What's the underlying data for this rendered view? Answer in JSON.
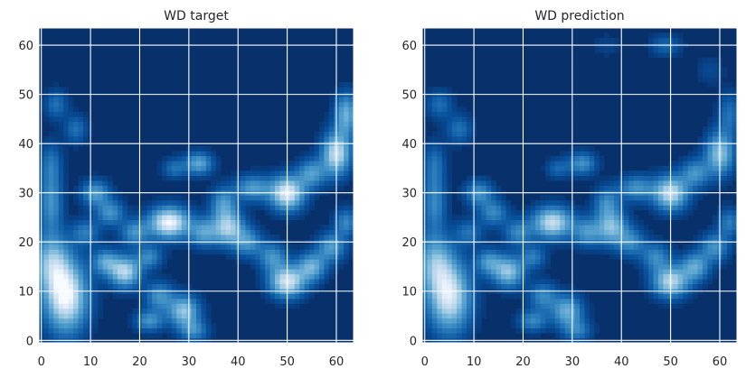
{
  "chart_data": [
    {
      "type": "heatmap",
      "title": "WD target",
      "xlabel": "",
      "ylabel": "",
      "xlim": [
        0,
        63
      ],
      "ylim": [
        0,
        63
      ],
      "x_ticks": [
        "0",
        "10",
        "20",
        "30",
        "40",
        "50",
        "60"
      ],
      "y_ticks": [
        "0",
        "10",
        "20",
        "30",
        "40",
        "50",
        "60"
      ],
      "grid": true,
      "colormap": "Blues",
      "background_color": "#08306b",
      "highlight_color": "#f7fbff",
      "blobs": [
        {
          "x": 5,
          "y": 9,
          "sx": 3.0,
          "sy": 5.0,
          "v": 1.0
        },
        {
          "x": 2,
          "y": 16,
          "sx": 2.5,
          "sy": 4.0,
          "v": 0.6
        },
        {
          "x": 2,
          "y": 28,
          "sx": 1.6,
          "sy": 4.0,
          "v": 0.45
        },
        {
          "x": 2,
          "y": 36,
          "sx": 1.5,
          "sy": 3.0,
          "v": 0.3
        },
        {
          "x": 3,
          "y": 48,
          "sx": 1.6,
          "sy": 2.0,
          "v": 0.3
        },
        {
          "x": 7,
          "y": 43,
          "sx": 1.6,
          "sy": 2.0,
          "v": 0.3
        },
        {
          "x": 11,
          "y": 30,
          "sx": 2.0,
          "sy": 1.8,
          "v": 0.5
        },
        {
          "x": 14,
          "y": 26,
          "sx": 2.0,
          "sy": 1.8,
          "v": 0.45
        },
        {
          "x": 9,
          "y": 22,
          "sx": 2.0,
          "sy": 1.8,
          "v": 0.35
        },
        {
          "x": 17,
          "y": 14,
          "sx": 2.2,
          "sy": 2.2,
          "v": 0.8
        },
        {
          "x": 13,
          "y": 16,
          "sx": 1.8,
          "sy": 1.8,
          "v": 0.5
        },
        {
          "x": 19,
          "y": 22,
          "sx": 2.0,
          "sy": 1.8,
          "v": 0.45
        },
        {
          "x": 22,
          "y": 17,
          "sx": 1.8,
          "sy": 1.6,
          "v": 0.4
        },
        {
          "x": 24,
          "y": 9,
          "sx": 2.0,
          "sy": 2.0,
          "v": 0.45
        },
        {
          "x": 29,
          "y": 6,
          "sx": 2.2,
          "sy": 2.2,
          "v": 0.7
        },
        {
          "x": 22,
          "y": 4,
          "sx": 2.0,
          "sy": 1.5,
          "v": 0.45
        },
        {
          "x": 31,
          "y": 2,
          "sx": 2.0,
          "sy": 1.5,
          "v": 0.4
        },
        {
          "x": 26,
          "y": 24,
          "sx": 2.8,
          "sy": 2.2,
          "v": 1.0
        },
        {
          "x": 33,
          "y": 22,
          "sx": 2.0,
          "sy": 2.0,
          "v": 0.5
        },
        {
          "x": 38,
          "y": 23,
          "sx": 2.2,
          "sy": 2.4,
          "v": 0.75
        },
        {
          "x": 37,
          "y": 28,
          "sx": 1.8,
          "sy": 2.2,
          "v": 0.45
        },
        {
          "x": 42,
          "y": 20,
          "sx": 2.0,
          "sy": 2.0,
          "v": 0.45
        },
        {
          "x": 47,
          "y": 17,
          "sx": 2.0,
          "sy": 2.0,
          "v": 0.45
        },
        {
          "x": 32,
          "y": 36,
          "sx": 2.0,
          "sy": 1.6,
          "v": 0.55
        },
        {
          "x": 27,
          "y": 35,
          "sx": 1.6,
          "sy": 1.4,
          "v": 0.3
        },
        {
          "x": 43,
          "y": 31,
          "sx": 2.5,
          "sy": 1.8,
          "v": 0.5
        },
        {
          "x": 50,
          "y": 30,
          "sx": 2.4,
          "sy": 2.4,
          "v": 0.95
        },
        {
          "x": 55,
          "y": 34,
          "sx": 2.0,
          "sy": 2.0,
          "v": 0.5
        },
        {
          "x": 60,
          "y": 38,
          "sx": 2.0,
          "sy": 3.0,
          "v": 0.85
        },
        {
          "x": 62,
          "y": 46,
          "sx": 1.6,
          "sy": 3.0,
          "v": 0.6
        },
        {
          "x": 50,
          "y": 12,
          "sx": 2.5,
          "sy": 2.2,
          "v": 0.9
        },
        {
          "x": 55,
          "y": 15,
          "sx": 2.0,
          "sy": 2.0,
          "v": 0.6
        },
        {
          "x": 59,
          "y": 19,
          "sx": 2.0,
          "sy": 2.0,
          "v": 0.5
        },
        {
          "x": 62,
          "y": 24,
          "sx": 1.6,
          "sy": 2.0,
          "v": 0.4
        }
      ]
    },
    {
      "type": "heatmap",
      "title": "WD prediction",
      "xlabel": "",
      "ylabel": "",
      "xlim": [
        0,
        63
      ],
      "ylim": [
        0,
        63
      ],
      "x_ticks": [
        "0",
        "10",
        "20",
        "30",
        "40",
        "50",
        "60"
      ],
      "y_ticks": [
        "0",
        "10",
        "20",
        "30",
        "40",
        "50",
        "60"
      ],
      "grid": true,
      "colormap": "Blues",
      "background_color": "#08306b",
      "highlight_color": "#f7fbff",
      "blobs": [
        {
          "x": 5,
          "y": 9,
          "sx": 3.0,
          "sy": 5.0,
          "v": 0.9
        },
        {
          "x": 2,
          "y": 16,
          "sx": 2.5,
          "sy": 4.0,
          "v": 0.55
        },
        {
          "x": 2,
          "y": 28,
          "sx": 1.6,
          "sy": 4.0,
          "v": 0.4
        },
        {
          "x": 2,
          "y": 36,
          "sx": 1.5,
          "sy": 3.0,
          "v": 0.28
        },
        {
          "x": 3,
          "y": 48,
          "sx": 1.8,
          "sy": 2.0,
          "v": 0.28
        },
        {
          "x": 7,
          "y": 43,
          "sx": 1.8,
          "sy": 2.0,
          "v": 0.3
        },
        {
          "x": 11,
          "y": 30,
          "sx": 2.0,
          "sy": 1.8,
          "v": 0.45
        },
        {
          "x": 14,
          "y": 26,
          "sx": 2.0,
          "sy": 1.8,
          "v": 0.4
        },
        {
          "x": 9,
          "y": 22,
          "sx": 2.0,
          "sy": 1.8,
          "v": 0.3
        },
        {
          "x": 17,
          "y": 14,
          "sx": 2.2,
          "sy": 2.2,
          "v": 0.7
        },
        {
          "x": 13,
          "y": 16,
          "sx": 1.8,
          "sy": 1.8,
          "v": 0.45
        },
        {
          "x": 19,
          "y": 22,
          "sx": 2.0,
          "sy": 1.8,
          "v": 0.4
        },
        {
          "x": 22,
          "y": 17,
          "sx": 1.8,
          "sy": 1.6,
          "v": 0.35
        },
        {
          "x": 24,
          "y": 9,
          "sx": 2.0,
          "sy": 2.0,
          "v": 0.4
        },
        {
          "x": 29,
          "y": 6,
          "sx": 2.2,
          "sy": 2.2,
          "v": 0.6
        },
        {
          "x": 22,
          "y": 4,
          "sx": 2.0,
          "sy": 1.5,
          "v": 0.4
        },
        {
          "x": 31,
          "y": 2,
          "sx": 2.0,
          "sy": 1.5,
          "v": 0.35
        },
        {
          "x": 26,
          "y": 24,
          "sx": 2.8,
          "sy": 2.2,
          "v": 0.85
        },
        {
          "x": 33,
          "y": 22,
          "sx": 2.0,
          "sy": 2.0,
          "v": 0.45
        },
        {
          "x": 38,
          "y": 23,
          "sx": 2.2,
          "sy": 2.4,
          "v": 0.65
        },
        {
          "x": 37,
          "y": 28,
          "sx": 1.8,
          "sy": 2.2,
          "v": 0.4
        },
        {
          "x": 42,
          "y": 20,
          "sx": 2.0,
          "sy": 2.0,
          "v": 0.4
        },
        {
          "x": 47,
          "y": 17,
          "sx": 2.0,
          "sy": 2.0,
          "v": 0.4
        },
        {
          "x": 32,
          "y": 36,
          "sx": 2.0,
          "sy": 1.6,
          "v": 0.45
        },
        {
          "x": 27,
          "y": 35,
          "sx": 1.6,
          "sy": 1.4,
          "v": 0.25
        },
        {
          "x": 43,
          "y": 31,
          "sx": 2.5,
          "sy": 1.8,
          "v": 0.45
        },
        {
          "x": 50,
          "y": 30,
          "sx": 2.4,
          "sy": 2.4,
          "v": 0.85
        },
        {
          "x": 55,
          "y": 34,
          "sx": 2.0,
          "sy": 2.0,
          "v": 0.45
        },
        {
          "x": 60,
          "y": 38,
          "sx": 2.0,
          "sy": 3.0,
          "v": 0.7
        },
        {
          "x": 62,
          "y": 46,
          "sx": 1.6,
          "sy": 3.0,
          "v": 0.3
        },
        {
          "x": 50,
          "y": 12,
          "sx": 2.5,
          "sy": 2.2,
          "v": 0.8
        },
        {
          "x": 55,
          "y": 15,
          "sx": 2.0,
          "sy": 2.0,
          "v": 0.55
        },
        {
          "x": 59,
          "y": 19,
          "sx": 2.0,
          "sy": 2.0,
          "v": 0.45
        },
        {
          "x": 62,
          "y": 24,
          "sx": 1.6,
          "sy": 2.0,
          "v": 0.35
        },
        {
          "x": 49,
          "y": 60,
          "sx": 2.2,
          "sy": 1.5,
          "v": 0.25
        },
        {
          "x": 58,
          "y": 55,
          "sx": 2.0,
          "sy": 2.0,
          "v": 0.12
        },
        {
          "x": 37,
          "y": 60,
          "sx": 2.0,
          "sy": 1.5,
          "v": 0.1
        }
      ]
    }
  ]
}
